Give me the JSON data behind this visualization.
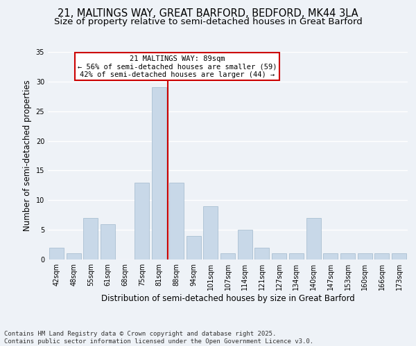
{
  "title1": "21, MALTINGS WAY, GREAT BARFORD, BEDFORD, MK44 3LA",
  "title2": "Size of property relative to semi-detached houses in Great Barford",
  "xlabel": "Distribution of semi-detached houses by size in Great Barford",
  "ylabel": "Number of semi-detached properties",
  "footer": "Contains HM Land Registry data © Crown copyright and database right 2025.\nContains public sector information licensed under the Open Government Licence v3.0.",
  "bin_labels": [
    "42sqm",
    "48sqm",
    "55sqm",
    "61sqm",
    "68sqm",
    "75sqm",
    "81sqm",
    "88sqm",
    "94sqm",
    "101sqm",
    "107sqm",
    "114sqm",
    "121sqm",
    "127sqm",
    "134sqm",
    "140sqm",
    "147sqm",
    "153sqm",
    "160sqm",
    "166sqm",
    "173sqm"
  ],
  "bar_heights": [
    2,
    1,
    7,
    6,
    0,
    13,
    29,
    13,
    4,
    9,
    1,
    5,
    2,
    1,
    1,
    7,
    1,
    1,
    1,
    1,
    1
  ],
  "bar_color": "#c8d8e8",
  "bar_edgecolor": "#a0b8cc",
  "vline_x": 6.5,
  "vline_color": "#cc0000",
  "annotation_box_edgecolor": "#cc0000",
  "pct_smaller": 56,
  "count_smaller": 59,
  "pct_larger": 42,
  "count_larger": 44,
  "ylim": [
    0,
    35
  ],
  "yticks": [
    0,
    5,
    10,
    15,
    20,
    25,
    30,
    35
  ],
  "bg_color": "#eef2f7",
  "plot_bg_color": "#eef2f7",
  "title_fontsize": 10.5,
  "subtitle_fontsize": 9.5,
  "axis_fontsize": 8.5,
  "tick_fontsize": 7,
  "annot_fontsize": 7.5,
  "footer_fontsize": 6.5
}
